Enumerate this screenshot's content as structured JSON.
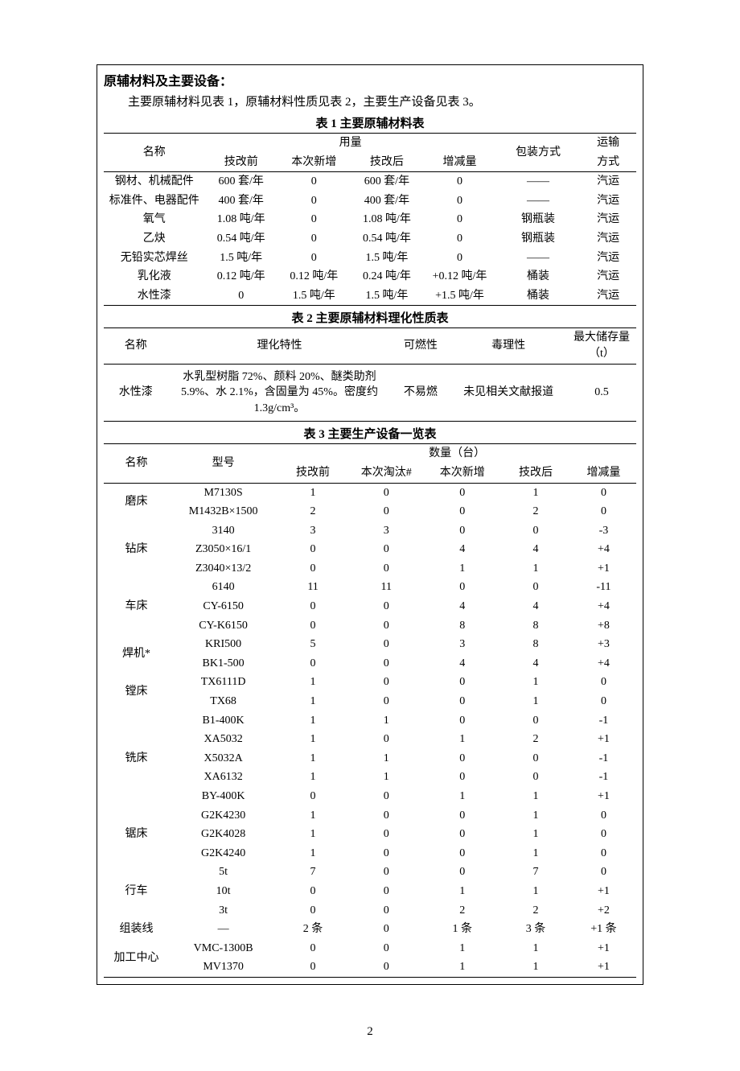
{
  "section_title": "原辅材料及主要设备：",
  "intro": "主要原辅材料见表 1，原辅材料性质见表 2，主要生产设备见表 3。",
  "page_number": "2",
  "table1": {
    "caption": "表 1   主要原辅材料表",
    "head": {
      "name": "名称",
      "usage": "用量",
      "packaging": "包装方式",
      "transport_top": "运输",
      "transport_bot": "方式",
      "before": "技改前",
      "newadd": "本次新增",
      "after": "技改后",
      "delta": "增减量"
    },
    "rows": [
      {
        "name": "钢材、机械配件",
        "before": "600 套/年",
        "newadd": "0",
        "after": "600 套/年",
        "delta": "0",
        "pkg": "——",
        "trans": "汽运"
      },
      {
        "name": "标准件、电器配件",
        "before": "400 套/年",
        "newadd": "0",
        "after": "400 套/年",
        "delta": "0",
        "pkg": "——",
        "trans": "汽运"
      },
      {
        "name": "氧气",
        "before": "1.08 吨/年",
        "newadd": "0",
        "after": "1.08 吨/年",
        "delta": "0",
        "pkg": "钢瓶装",
        "trans": "汽运"
      },
      {
        "name": "乙炔",
        "before": "0.54 吨/年",
        "newadd": "0",
        "after": "0.54 吨/年",
        "delta": "0",
        "pkg": "钢瓶装",
        "trans": "汽运"
      },
      {
        "name": "无铅实芯焊丝",
        "before": "1.5 吨/年",
        "newadd": "0",
        "after": "1.5 吨/年",
        "delta": "0",
        "pkg": "——",
        "trans": "汽运"
      },
      {
        "name": "乳化液",
        "before": "0.12 吨/年",
        "newadd": "0.12 吨/年",
        "after": "0.24 吨/年",
        "delta": "+0.12 吨/年",
        "pkg": "桶装",
        "trans": "汽运"
      },
      {
        "name": "水性漆",
        "before": "0",
        "newadd": "1.5 吨/年",
        "after": "1.5 吨/年",
        "delta": "+1.5 吨/年",
        "pkg": "桶装",
        "trans": "汽运"
      }
    ]
  },
  "table2": {
    "caption": "表 2   主要原辅材料理化性质表",
    "head": {
      "name": "名称",
      "prop": "理化特性",
      "flame": "可燃性",
      "toxic": "毒理性",
      "maxstore": "最大储存量（t）"
    },
    "rows": [
      {
        "name": "水性漆",
        "prop": "水乳型树脂 72%、颜料 20%、醚类助剂5.9%、水 2.1%，含固量为 45%。密度约1.3g/cm³。",
        "flame": "不易燃",
        "toxic": "未见相关文献报道",
        "maxstore": "0.5"
      }
    ]
  },
  "table3": {
    "caption": "表 3   主要生产设备一览表",
    "head": {
      "name": "名称",
      "model": "型号",
      "qty": "数量（台）",
      "before": "技改前",
      "retire": "本次淘汰#",
      "newadd": "本次新增",
      "after": "技改后",
      "delta": "增减量"
    },
    "groups": [
      {
        "name": "磨床",
        "rows": [
          {
            "model": "M7130S",
            "before": "1",
            "retire": "0",
            "newadd": "0",
            "after": "1",
            "delta": "0"
          },
          {
            "model": "M1432B×1500",
            "before": "2",
            "retire": "0",
            "newadd": "0",
            "after": "2",
            "delta": "0"
          }
        ]
      },
      {
        "name": "钻床",
        "rows": [
          {
            "model": "3140",
            "before": "3",
            "retire": "3",
            "newadd": "0",
            "after": "0",
            "delta": "-3"
          },
          {
            "model": "Z3050×16/1",
            "before": "0",
            "retire": "0",
            "newadd": "4",
            "after": "4",
            "delta": "+4"
          },
          {
            "model": "Z3040×13/2",
            "before": "0",
            "retire": "0",
            "newadd": "1",
            "after": "1",
            "delta": "+1"
          }
        ]
      },
      {
        "name": "车床",
        "rows": [
          {
            "model": "6140",
            "before": "11",
            "retire": "11",
            "newadd": "0",
            "after": "0",
            "delta": "-11"
          },
          {
            "model": "CY-6150",
            "before": "0",
            "retire": "0",
            "newadd": "4",
            "after": "4",
            "delta": "+4"
          },
          {
            "model": "CY-K6150",
            "before": "0",
            "retire": "0",
            "newadd": "8",
            "after": "8",
            "delta": "+8"
          }
        ]
      },
      {
        "name": "焊机*",
        "rows": [
          {
            "model": "KRI500",
            "before": "5",
            "retire": "0",
            "newadd": "3",
            "after": "8",
            "delta": "+3"
          },
          {
            "model": "BK1-500",
            "before": "0",
            "retire": "0",
            "newadd": "4",
            "after": "4",
            "delta": "+4"
          }
        ]
      },
      {
        "name": "镗床",
        "rows": [
          {
            "model": "TX6111D",
            "before": "1",
            "retire": "0",
            "newadd": "0",
            "after": "1",
            "delta": "0"
          },
          {
            "model": "TX68",
            "before": "1",
            "retire": "0",
            "newadd": "0",
            "after": "1",
            "delta": "0"
          }
        ]
      },
      {
        "name": "铣床",
        "rows": [
          {
            "model": "B1-400K",
            "before": "1",
            "retire": "1",
            "newadd": "0",
            "after": "0",
            "delta": "-1"
          },
          {
            "model": "XA5032",
            "before": "1",
            "retire": "0",
            "newadd": "1",
            "after": "2",
            "delta": "+1"
          },
          {
            "model": "X5032A",
            "before": "1",
            "retire": "1",
            "newadd": "0",
            "after": "0",
            "delta": "-1"
          },
          {
            "model": "XA6132",
            "before": "1",
            "retire": "1",
            "newadd": "0",
            "after": "0",
            "delta": "-1"
          },
          {
            "model": "BY-400K",
            "before": "0",
            "retire": "0",
            "newadd": "1",
            "after": "1",
            "delta": "+1"
          }
        ]
      },
      {
        "name": "锯床",
        "rows": [
          {
            "model": "G2K4230",
            "before": "1",
            "retire": "0",
            "newadd": "0",
            "after": "1",
            "delta": "0"
          },
          {
            "model": "G2K4028",
            "before": "1",
            "retire": "0",
            "newadd": "0",
            "after": "1",
            "delta": "0"
          },
          {
            "model": "G2K4240",
            "before": "1",
            "retire": "0",
            "newadd": "0",
            "after": "1",
            "delta": "0"
          }
        ]
      },
      {
        "name": "行车",
        "rows": [
          {
            "model": "5t",
            "before": "7",
            "retire": "0",
            "newadd": "0",
            "after": "7",
            "delta": "0"
          },
          {
            "model": "10t",
            "before": "0",
            "retire": "0",
            "newadd": "1",
            "after": "1",
            "delta": "+1"
          },
          {
            "model": "3t",
            "before": "0",
            "retire": "0",
            "newadd": "2",
            "after": "2",
            "delta": "+2"
          }
        ]
      },
      {
        "name": "组装线",
        "rows": [
          {
            "model": "—",
            "before": "2 条",
            "retire": "0",
            "newadd": "1 条",
            "after": "3 条",
            "delta": "+1 条"
          }
        ]
      },
      {
        "name": "加工中心",
        "rows": [
          {
            "model": "VMC-1300B",
            "before": "0",
            "retire": "0",
            "newadd": "1",
            "after": "1",
            "delta": "+1"
          },
          {
            "model": "MV1370",
            "before": "0",
            "retire": "0",
            "newadd": "1",
            "after": "1",
            "delta": "+1"
          }
        ]
      }
    ]
  }
}
